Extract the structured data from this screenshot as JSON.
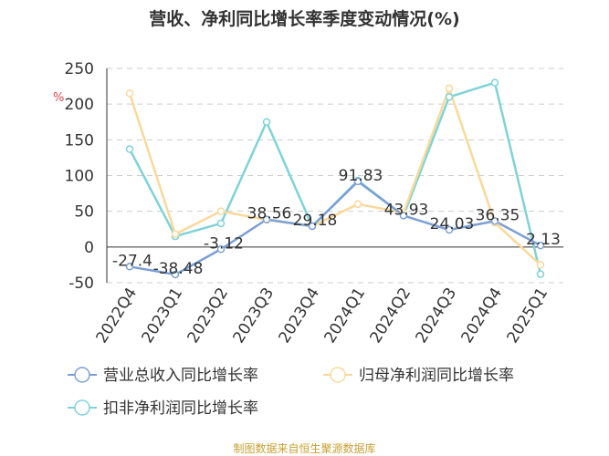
{
  "title": "营收、净利同比增长率季度变动情况(%)",
  "unit_label": "%",
  "source": "制图数据来自恒生聚源数据库",
  "chart_data": {
    "type": "line",
    "categories": [
      "2022Q4",
      "2023Q1",
      "2023Q2",
      "2023Q3",
      "2023Q4",
      "2024Q1",
      "2024Q2",
      "2024Q3",
      "2024Q4",
      "2025Q1"
    ],
    "ylim": [
      -50,
      250
    ],
    "yticks": [
      -50,
      0,
      50,
      100,
      150,
      200,
      250
    ],
    "grid": true,
    "legend_position": "bottom",
    "series": [
      {
        "name": "营业总收入同比增长率",
        "color": "#7b9fd4",
        "values": [
          -27.4,
          -38.48,
          -3.12,
          38.56,
          29.18,
          91.83,
          43.93,
          24.03,
          36.35,
          2.13
        ],
        "labels": [
          "-27.4",
          "-38.48",
          "-3.12",
          "38.56",
          "29.18",
          "91.83",
          "43.93",
          "24.03",
          "36.35",
          "2.13"
        ]
      },
      {
        "name": "归母净利润同比增长率",
        "color": "#f9d99a",
        "values": [
          215,
          18,
          50,
          38,
          29,
          60,
          48,
          222,
          34,
          -25
        ]
      },
      {
        "name": "扣非净利润同比增长率",
        "color": "#7ed3d8",
        "values": [
          137,
          15,
          33,
          175,
          29,
          93,
          44,
          210,
          230,
          -38
        ]
      }
    ]
  }
}
